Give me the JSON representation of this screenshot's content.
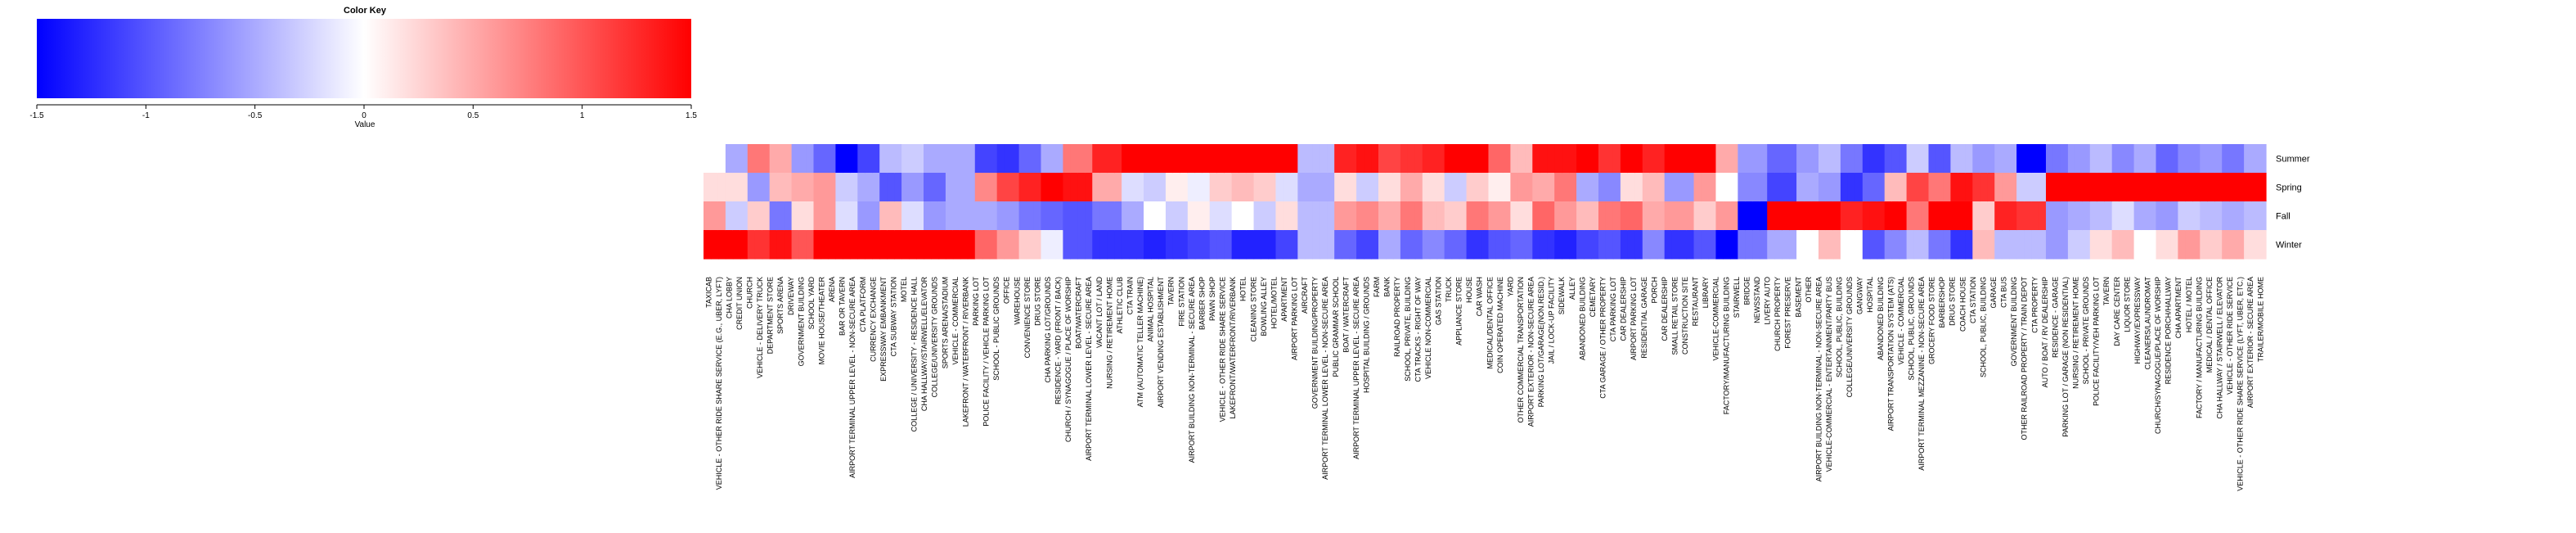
{
  "chart_data": {
    "type": "heatmap",
    "title": "",
    "key": {
      "title": "Color Key",
      "xlabel": "Value",
      "range": [
        -1.5,
        1.5
      ],
      "ticks": [
        "-1.5",
        "-1",
        "-0.5",
        "0",
        "0.5",
        "1",
        "1.5"
      ],
      "tick_values": [
        -1.5,
        -1,
        -0.5,
        0,
        0.5,
        1,
        1.5
      ],
      "colors": {
        "low": "#0000ff",
        "mid": "#ffffff",
        "high": "#ff0000"
      }
    },
    "rows": [
      "Summer",
      "Spring",
      "Fall",
      "Winter"
    ],
    "columns": [
      "TAXICAB",
      "VEHICLE - OTHER RIDE SHARE SERVICE (E.G., UBER, LYFT)",
      "CHA LOBBY",
      "CREDIT UNION",
      "CHURCH",
      "VEHICLE - DELIVERY TRUCK",
      "DEPARTMENT STORE",
      "SPORTS ARENA",
      "DRIVEWAY",
      "GOVERNMENT BUILDING",
      "SCHOOL YARD",
      "MOVIE HOUSE/THEATER",
      "ARENA",
      "BAR OR TAVERN",
      "AIRPORT TERMINAL UPPER LEVEL - NON-SECURE AREA",
      "CTA PLATFORM",
      "CURRENCY EXCHANGE",
      "EXPRESSWAY EMBANKMENT",
      "CTA SUBWAY STATION",
      "MOTEL",
      "COLLEGE / UNIVERSITY - RESIDENCE HALL",
      "CHA HALLWAY/STAIRWELL/ELEVATOR",
      "COLLEGE/UNIVERSITY GROUNDS",
      "SPORTS ARENA/STADIUM",
      "VEHICLE - COMMERCIAL",
      "LAKEFRONT / WATERFRONT / RIVERBANK",
      "PARKING LOT",
      "POLICE FACILITY / VEHICLE PARKING LOT",
      "SCHOOL - PUBLIC GROUNDS",
      "OFFICE",
      "WAREHOUSE",
      "CONVENIENCE STORE",
      "DRUG STORE",
      "CHA PARKING LOT/GROUNDS",
      "RESIDENCE - YARD (FRONT / BACK)",
      "CHURCH / SYNAGOGUE / PLACE OF WORSHIP",
      "BOAT/WATERCRAFT",
      "AIRPORT TERMINAL LOWER LEVEL - SECURE AREA",
      "VACANT LOT / LAND",
      "NURSING / RETIREMENT HOME",
      "ATHLETIC CLUB",
      "CTA TRAIN",
      "ATM (AUTOMATIC TELLER MACHINE)",
      "ANIMAL HOSPITAL",
      "AIRPORT VENDING ESTABLISHMENT",
      "TAVERN",
      "FIRE STATION",
      "AIRPORT BUILDING NON-TERMINAL - SECURE AREA",
      "BARBER SHOP",
      "PAWN SHOP",
      "VEHICLE - OTHER RIDE SHARE SERVICE",
      "LAKEFRONT/WATERFRONT/RIVERBANK",
      "HOTEL",
      "CLEANING STORE",
      "BOWLING ALLEY",
      "HOTEL/MOTEL",
      "APARTMENT",
      "AIRPORT PARKING LOT",
      "AIRCRAFT",
      "GOVERNMENT BUILDING/PROPERTY",
      "AIRPORT TERMINAL LOWER LEVEL - NON-SECURE AREA",
      "PUBLIC GRAMMAR SCHOOL",
      "BOAT / WATERCRAFT",
      "AIRPORT TERMINAL UPPER LEVEL - SECURE AREA",
      "HOSPITAL BUILDING / GROUNDS",
      "FARM",
      "BANK",
      "RAILROAD PROPERTY",
      "SCHOOL, PRIVATE, BUILDING",
      "CTA TRACKS - RIGHT OF WAY",
      "VEHICLE NON-COMMERCIAL",
      "GAS STATION",
      "TRUCK",
      "APPLIANCE STORE",
      "HOUSE",
      "CAR WASH",
      "MEDICAL/DENTAL OFFICE",
      "COIN OPERATED MACHINE",
      "YARD",
      "OTHER COMMERCIAL TRANSPORTATION",
      "AIRPORT EXTERIOR - NON-SECURE AREA",
      "PARKING LOT/GARAGE(NON.RESID.)",
      "JAIL / LOCK-UP FACILITY",
      "SIDEWALK",
      "ALLEY",
      "ABANDONED BUILDING",
      "CEMETARY",
      "CTA GARAGE / OTHER PROPERTY",
      "CTA PARKING LOT",
      "CAR DEALERSHIP",
      "AIRPORT PARKING LOT",
      "RESIDENTIAL GARAGE",
      "PORCH",
      "CAR DEALERSHIP",
      "SMALL RETAIL STORE",
      "CONSTRUCTION SITE",
      "RESTAURANT",
      "LIBRARY",
      "VEHICLE-COMMERCIAL",
      "FACTORY/MANUFACTURING BUILDING",
      "STAIRWELL",
      "BRIDGE",
      "NEWSSTAND",
      "LIVERY AUTO",
      "CHURCH PROPERTY",
      "FOREST PRESERVE",
      "BASEMENT",
      "OTHER",
      "AIRPORT BUILDING NON-TERMINAL - NON-SECURE AREA",
      "VEHICLE-COMMERCIAL - ENTERTAINMENT/PARTY BUS",
      "SCHOOL, PUBLIC, BUILDING",
      "COLLEGE/UNIVERSITY GROUNDS",
      "GANGWAY",
      "HOSPITAL",
      "ABANDONED BUILDING",
      "AIRPORT TRANSPORTATION SYSTEM (ATS)",
      "VEHICLE - COMMERCIAL",
      "SCHOOL, PUBLIC, GROUNDS",
      "AIRPORT TERMINAL MEZZANINE - NON-SECURE AREA",
      "GROCERY FOOD STORE",
      "BARBERSHOP",
      "DRUG STORE",
      "COACH HOUSE",
      "CTA STATION",
      "SCHOOL, PUBLIC, BUILDING",
      "GARAGE",
      "CTA BUS",
      "GOVERNMENT BUILDING",
      "OTHER RAILROAD PROPERTY / TRAIN DEPOT",
      "CTA PROPERTY",
      "AUTO / BOAT / RV DEALERSHIP",
      "RESIDENCE - GARAGE",
      "PARKING LOT / GARAGE (NON RESIDENTIAL)",
      "NURSING / RETIREMENT HOME",
      "SCHOOL - PRIVATE GROUNDS",
      "POLICE FACILITY/VEH PARKING LOT",
      "TAVERN",
      "DAY CARE CENTER",
      "LIQUOR STORE",
      "HIGHWAY/EXPRESSWAY",
      "CLEANERS/LAUNDROMAT",
      "CHURCH/SYNAGOGUE/PLACE OF WORSHIP",
      "RESIDENCE PORCH/HALLWAY",
      "CHA APARTMENT",
      "HOTEL / MOTEL",
      "FACTORY / MANUFACTURING BUILDING",
      "MEDICAL / DENTAL OFFICE",
      "CHA HALLWAY / STAIRWELL / ELEVATOR",
      "VEHICLE - OTHER RIDE SERVICE",
      "VEHICLE - OTHER RIDE SHARE SERVICE (LYFT, UBER, ETC.)",
      "AIRPORT EXTERIOR - SECURE AREA",
      "TRAILER/MOBILE HOME"
    ],
    "segments": [
      [
        3,
        0.0,
        0.2,
        0.6,
        1.6
      ],
      [
        3,
        -0.5,
        0.2,
        -0.3,
        1.5
      ],
      [
        3,
        0.8,
        -0.6,
        0.3,
        1.2
      ],
      [
        3,
        0.5,
        0.4,
        -0.8,
        1.4
      ],
      [
        3,
        -0.6,
        0.5,
        0.2,
        1.0
      ],
      [
        3,
        -0.9,
        0.6,
        0.6,
        1.5
      ],
      [
        3,
        -1.5,
        -0.3,
        -0.2,
        1.6
      ],
      [
        3,
        -1.1,
        -0.5,
        -0.6,
        1.5
      ],
      [
        3,
        -0.4,
        -1.0,
        0.4,
        1.6
      ],
      [
        3,
        -0.3,
        -0.6,
        -0.2,
        1.5
      ],
      [
        3,
        -0.5,
        -0.9,
        -0.6,
        1.6
      ],
      [
        4,
        -0.5,
        -0.5,
        -0.5,
        1.5
      ],
      [
        3,
        -1.1,
        0.7,
        -0.5,
        0.9
      ],
      [
        3,
        -1.2,
        1.1,
        -0.6,
        0.6
      ],
      [
        3,
        -0.9,
        1.3,
        -0.8,
        0.3
      ],
      [
        3,
        -0.5,
        1.5,
        -0.9,
        -0.1
      ],
      [
        4,
        0.8,
        1.4,
        -1.0,
        -1.0
      ],
      [
        4,
        1.3,
        0.5,
        -0.8,
        -1.2
      ],
      [
        3,
        1.5,
        -0.2,
        -0.5,
        -1.2
      ],
      [
        3,
        1.5,
        -0.3,
        0.0,
        -1.3
      ],
      [
        3,
        1.6,
        0.1,
        -0.3,
        -1.2
      ],
      [
        3,
        1.5,
        -0.1,
        0.1,
        -1.1
      ],
      [
        3,
        1.6,
        0.3,
        -0.2,
        -1.0
      ],
      [
        3,
        1.6,
        0.4,
        0.0,
        -1.3
      ],
      [
        3,
        1.5,
        0.3,
        -0.3,
        -1.3
      ],
      [
        3,
        1.6,
        -0.2,
        0.2,
        -1.1
      ],
      [
        5,
        -0.4,
        -0.5,
        -0.4,
        -0.4
      ],
      [
        3,
        1.3,
        0.2,
        0.6,
        -0.9
      ],
      [
        3,
        1.4,
        -0.3,
        0.7,
        -1.1
      ],
      [
        3,
        1.1,
        0.2,
        0.5,
        -0.5
      ],
      [
        3,
        1.2,
        0.5,
        0.8,
        -0.9
      ],
      [
        3,
        1.3,
        0.2,
        0.4,
        -0.7
      ],
      [
        3,
        1.5,
        -0.3,
        0.3,
        -0.9
      ],
      [
        3,
        1.5,
        0.3,
        0.8,
        -1.2
      ],
      [
        3,
        0.9,
        0.1,
        0.6,
        -1.0
      ],
      [
        3,
        0.4,
        0.6,
        0.2,
        -0.9
      ],
      [
        3,
        1.4,
        0.5,
        0.9,
        -1.2
      ],
      [
        3,
        1.4,
        0.8,
        0.6,
        -1.3
      ],
      [
        3,
        1.5,
        -0.5,
        0.4,
        -1.1
      ],
      [
        3,
        1.2,
        -0.7,
        0.8,
        -1.0
      ],
      [
        3,
        1.5,
        0.2,
        0.9,
        -1.2
      ],
      [
        3,
        1.3,
        0.4,
        0.5,
        -0.7
      ],
      [
        4,
        1.6,
        -0.6,
        0.6,
        -1.2
      ],
      [
        3,
        1.5,
        0.6,
        0.3,
        -1.0
      ],
      [
        3,
        0.5,
        0.0,
        0.6,
        -1.5
      ],
      [
        4,
        -0.6,
        -0.7,
        -1.6,
        -0.8
      ],
      [
        4,
        -0.9,
        -1.1,
        1.8,
        -0.5
      ],
      [
        3,
        -0.6,
        -0.5,
        1.6,
        0.0
      ],
      [
        3,
        -0.4,
        -0.6,
        1.5,
        0.4
      ],
      [
        3,
        -0.8,
        -1.2,
        1.3,
        0.0
      ],
      [
        3,
        -1.2,
        -0.9,
        1.4,
        -1.0
      ],
      [
        3,
        -1.0,
        0.4,
        1.6,
        -0.7
      ],
      [
        3,
        -0.3,
        1.1,
        0.8,
        -0.4
      ],
      [
        3,
        -1.0,
        0.8,
        1.6,
        -0.8
      ],
      [
        3,
        -0.4,
        1.4,
        1.5,
        -1.2
      ],
      [
        3,
        -0.6,
        1.2,
        0.3,
        0.4
      ],
      [
        3,
        -0.5,
        0.6,
        1.3,
        -0.4
      ],
      [
        4,
        -1.6,
        -0.3,
        1.2,
        -0.4
      ],
      [
        3,
        -0.8,
        1.6,
        -0.6,
        -0.6
      ],
      [
        3,
        -0.6,
        1.6,
        -0.5,
        -0.3
      ],
      [
        3,
        -0.4,
        1.6,
        -0.4,
        0.2
      ],
      [
        3,
        -0.7,
        1.6,
        -0.2,
        0.4
      ],
      [
        3,
        -0.5,
        1.6,
        -0.5,
        0.0
      ],
      [
        3,
        -0.9,
        1.6,
        -0.6,
        0.2
      ],
      [
        3,
        -0.7,
        1.6,
        -0.3,
        0.6
      ],
      [
        3,
        -0.6,
        1.6,
        -0.4,
        0.3
      ],
      [
        3,
        -0.8,
        1.6,
        -0.5,
        0.5
      ],
      [
        3,
        -0.5,
        1.6,
        -0.4,
        0.2
      ]
    ]
  }
}
